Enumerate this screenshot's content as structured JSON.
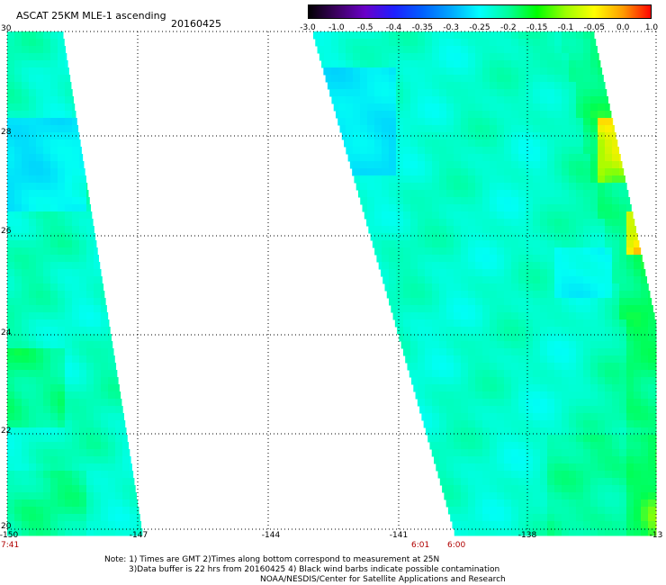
{
  "header": {
    "title": "ASCAT 25KM MLE-1 ascending",
    "date": "20160425"
  },
  "colorbar": {
    "labels": [
      "-3.0",
      "-1.0",
      "-0.5",
      "-0.4",
      "-0.35",
      "-0.3",
      "-0.25",
      "-0.2",
      "-0.15",
      "-0.1",
      "-0.05",
      "0.0",
      "1.0"
    ],
    "colors": [
      "#000000",
      "#3c0060",
      "#6a00c8",
      "#1f1fff",
      "#0060ff",
      "#00a8ff",
      "#00ffff",
      "#00ff9c",
      "#00ff00",
      "#9cff00",
      "#ffff00",
      "#ff9c00",
      "#ff0000"
    ]
  },
  "map": {
    "lat_labels": [
      "30",
      "28",
      "26",
      "24",
      "22",
      "20"
    ],
    "lon_labels": [
      "-150",
      "-147",
      "-144",
      "-141",
      "-138",
      "-13"
    ],
    "time_labels": [
      "7:41",
      "6:01",
      "6:00"
    ]
  },
  "notes": {
    "line1": "Note: 1) Times are GMT 2)Times along bottom correspond to measurement at 25N",
    "line2": "3)Data buffer is 22 hrs from 20160425 4) Black wind barbs indicate possible contamination",
    "line3": "NOAA/NESDIS/Center for Satellite Applications and Research"
  }
}
